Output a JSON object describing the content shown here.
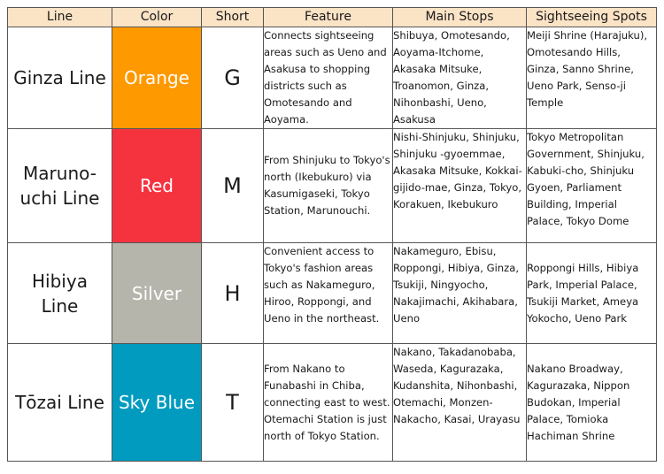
{
  "headers": [
    "Line",
    "Color",
    "Short",
    "Feature",
    "Main Stops",
    "Sightseeing Spots"
  ],
  "rows": [
    {
      "line": "Ginza Line",
      "color_name": "Orange",
      "color_hex": "#ff9900",
      "short": "G",
      "feature": "Connects sightseeing areas such as Ueno and Asakusa to shopping districts such as Omotesando and Aoyama.",
      "stops": "Shibuya, Omotesando, Aoyama-Itchome, Akasaka Mitsuke, Troanomon, Ginza, Nihonbashi, Ueno, Asakusa",
      "spots": "Meiji Shrine (Harajuku), Omotesando Hills, Ginza, Sanno Shrine, Ueno Park, Senso-ji Temple"
    },
    {
      "line": "Maruno-uchi Line",
      "color_name": "Red",
      "color_hex": "#f5333f",
      "short": "M",
      "feature": "From Shinjuku to Tokyo's north (Ikebukuro) via Kasumigaseki, Tokyo Station, Marunouchi.",
      "stops": "Nishi-Shinjuku, Shinjuku, Shinjuku -gyoemmae, Akasaka Mitsuke, Kokkai-gijido-mae, Ginza, Tokyo, Korakuen, Ikebukuro",
      "spots": "Tokyo Metropolitan Government, Shinjuku, Kabuki-cho, Shinjuku Gyoen, Parliament Building, Imperial Palace, Tokyo Dome"
    },
    {
      "line": "Hibiya Line",
      "color_name": "Silver",
      "color_hex": "#b5b5ac",
      "short": "H",
      "feature": "Convenient access to Tokyo's fashion areas such as Nakameguro, Hiroo, Roppongi, and Ueno in the northeast.",
      "stops": "Nakameguro, Ebisu, Roppongi, Hibiya, Ginza, Tsukiji, Ningyocho, Nakajimachi, Akihabara, Ueno",
      "spots": "Roppongi Hills, Hibiya Park, Imperial Palace, Tsukiji Market, Ameya Yokocho, Ueno Park"
    },
    {
      "line": "Tōzai Line",
      "color_name": "Sky Blue",
      "color_hex": "#009bbf",
      "short": "T",
      "feature": "From Nakano to Funabashi in Chiba, connecting east to west. Otemachi Station is just north of Tokyo Station.",
      "stops": "Nakano, Takadanobaba, Waseda, Kagurazaka, Kudanshita, Nihonbashi, Otemachi, Monzen-Nakacho, Kasai, Urayasu",
      "spots": "Nakano Broadway, Kagurazaka, Nippon Budokan, Imperial Palace, Tomioka Hachiman Shrine"
    }
  ]
}
